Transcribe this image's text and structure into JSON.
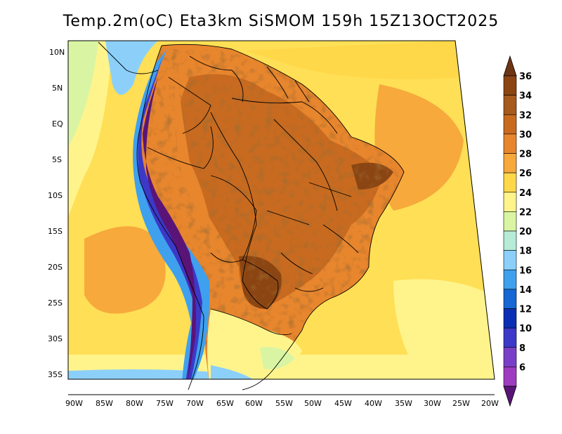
{
  "title": "Temp.2m(oC) Eta3km SiSMOM 159h 15Z13OCT2025",
  "lat_labels": [
    "10N",
    "5N",
    "EQ",
    "5S",
    "10S",
    "15S",
    "20S",
    "25S",
    "30S",
    "35S"
  ],
  "lon_labels": [
    "90W",
    "85W",
    "80W",
    "75W",
    "70W",
    "65W",
    "60W",
    "55W",
    "50W",
    "45W",
    "40W",
    "35W",
    "30W",
    "25W",
    "20W"
  ],
  "colorbar": {
    "labels": [
      "36",
      "34",
      "32",
      "30",
      "28",
      "26",
      "24",
      "22",
      "20",
      "18",
      "16",
      "14",
      "12",
      "10",
      "8",
      "6"
    ],
    "colors": [
      "#6e3514",
      "#8b4513",
      "#a65a1e",
      "#c86b20",
      "#e8862e",
      "#f7a93c",
      "#ffd84a",
      "#fff48c",
      "#d9f5a3",
      "#b6ecd7",
      "#8cd0fa",
      "#3fa0ee",
      "#1666d4",
      "#0a2fb4",
      "#3c38c8",
      "#7a3fc8",
      "#9e3cc0",
      "#5a1478"
    ],
    "unit": "oC"
  }
}
